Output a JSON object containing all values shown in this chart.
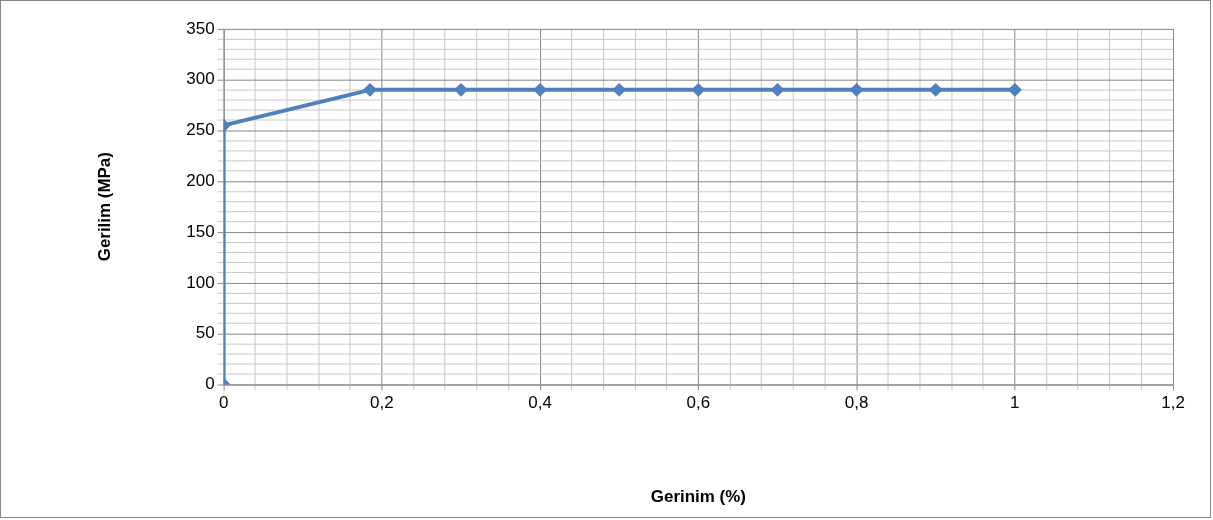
{
  "chart_data": {
    "type": "line",
    "xlabel": "Gerinim (%)",
    "ylabel": "Gerilim (MPa)",
    "series": [
      {
        "color": "#4f81bd",
        "x": [
          0,
          0,
          0.185,
          0.3,
          0.4,
          0.5,
          0.6,
          0.7,
          0.8,
          0.9,
          1
        ],
        "values": [
          0,
          255,
          290,
          290,
          290,
          290,
          290,
          290,
          290,
          290,
          290
        ]
      }
    ],
    "xlim": [
      0,
      1.2
    ],
    "xticks": [
      {
        "value": 0,
        "label": "0"
      },
      {
        "value": 0.04,
        "label": null
      },
      {
        "value": 0.08,
        "label": null
      },
      {
        "value": 0.12,
        "label": null
      },
      {
        "value": 0.16,
        "label": null
      },
      {
        "value": 0.2,
        "label": "0,2"
      },
      {
        "value": 0.24,
        "label": null
      },
      {
        "value": 0.28,
        "label": null
      },
      {
        "value": 0.32,
        "label": null
      },
      {
        "value": 0.36,
        "label": null
      },
      {
        "value": 0.4,
        "label": "0,4"
      },
      {
        "value": 0.44,
        "label": null
      },
      {
        "value": 0.48,
        "label": null
      },
      {
        "value": 0.52,
        "label": null
      },
      {
        "value": 0.56,
        "label": null
      },
      {
        "value": 0.6,
        "label": "0,6"
      },
      {
        "value": 0.64,
        "label": null
      },
      {
        "value": 0.68,
        "label": null
      },
      {
        "value": 0.72,
        "label": null
      },
      {
        "value": 0.76,
        "label": null
      },
      {
        "value": 0.8,
        "label": "0,8"
      },
      {
        "value": 0.84,
        "label": null
      },
      {
        "value": 0.88,
        "label": null
      },
      {
        "value": 0.92,
        "label": null
      },
      {
        "value": 0.96,
        "label": null
      },
      {
        "value": 1,
        "label": "1"
      },
      {
        "value": 1.04,
        "label": null
      },
      {
        "value": 1.08,
        "label": null
      },
      {
        "value": 1.12,
        "label": null
      },
      {
        "value": 1.16,
        "label": null
      },
      {
        "value": 1.2,
        "label": "1,2"
      }
    ],
    "ylim": [
      0,
      350
    ],
    "yticks": [
      0,
      {
        "value": 10,
        "label": null
      },
      {
        "value": 20,
        "label": null
      },
      {
        "value": 30,
        "label": null
      },
      {
        "value": 40,
        "label": null
      },
      50,
      {
        "value": 60,
        "label": null
      },
      {
        "value": 70,
        "label": null
      },
      {
        "value": 80,
        "label": null
      },
      {
        "value": 90,
        "label": null
      },
      100,
      {
        "value": 110,
        "label": null
      },
      {
        "value": 120,
        "label": null
      },
      {
        "value": 130,
        "label": null
      },
      {
        "value": 140,
        "label": null
      },
      150,
      {
        "value": 160,
        "label": null
      },
      {
        "value": 170,
        "label": null
      },
      {
        "value": 180,
        "label": null
      },
      {
        "value": 190,
        "label": null
      },
      200,
      {
        "value": 210,
        "label": null
      },
      {
        "value": 220,
        "label": null
      },
      {
        "value": 230,
        "label": null
      },
      {
        "value": 240,
        "label": null
      },
      250,
      {
        "value": 260,
        "label": null
      },
      {
        "value": 270,
        "label": null
      },
      {
        "value": 280,
        "label": null
      },
      {
        "value": 290,
        "label": null
      },
      300,
      {
        "value": 310,
        "label": null
      },
      {
        "value": 320,
        "label": null
      },
      {
        "value": 330,
        "label": null
      },
      {
        "value": 340,
        "label": null
      },
      350
    ],
    "grid": true,
    "marker": "diamond",
    "line_style": "solid",
    "legend": false
  }
}
